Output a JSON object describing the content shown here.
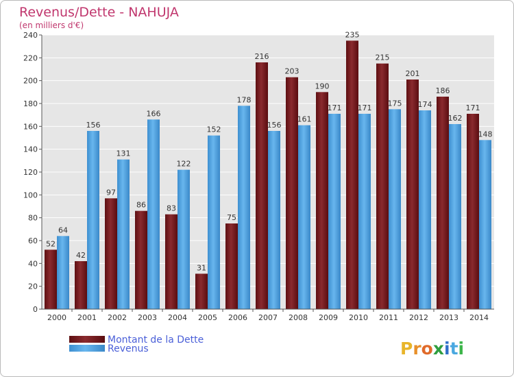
{
  "title": "Revenus/Dette - NAHUJA",
  "subtitle": "(en milliers d'€)",
  "logo": "Proxiti",
  "chart_data": {
    "type": "bar",
    "categories": [
      "2000",
      "2001",
      "2002",
      "2003",
      "2004",
      "2005",
      "2006",
      "2007",
      "2008",
      "2009",
      "2010",
      "2011",
      "2012",
      "2013",
      "2014"
    ],
    "series": [
      {
        "name": "Montant de la Dette",
        "color": "#7b1a1f",
        "values": [
          52,
          42,
          97,
          86,
          83,
          31,
          75,
          216,
          203,
          190,
          235,
          215,
          201,
          186,
          171
        ]
      },
      {
        "name": "Revenus",
        "color": "#4ea3e2",
        "values": [
          64,
          156,
          131,
          166,
          122,
          152,
          178,
          156,
          161,
          171,
          171,
          175,
          174,
          162,
          148
        ]
      }
    ],
    "ylim": [
      0,
      240
    ],
    "yticks": [
      0,
      20,
      40,
      60,
      80,
      100,
      120,
      140,
      160,
      180,
      200,
      220,
      240
    ],
    "grid": true,
    "legend_position": "bottom-left"
  },
  "colors": {
    "title": "#c0366d",
    "plot_background": "#e6e6e6",
    "grid": "#ffffff",
    "legend_text": "#4a5fd8",
    "logo_letters": [
      "#e8b52a",
      "#e8902a",
      "#e06a2a",
      "#2f9e3f",
      "#2f6fc9",
      "#4aa8e0",
      "#3cb54a"
    ]
  }
}
